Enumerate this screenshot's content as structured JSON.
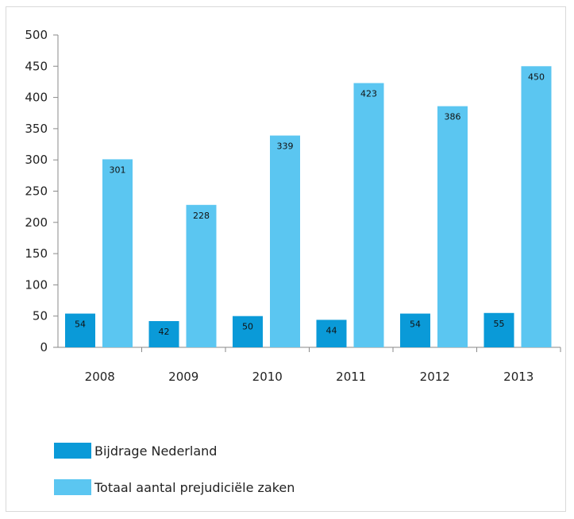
{
  "chart_data": {
    "type": "bar",
    "categories": [
      "2008",
      "2009",
      "2010",
      "2011",
      "2012",
      "2013"
    ],
    "series": [
      {
        "name": "Bijdrage Nederland",
        "values": [
          54,
          42,
          50,
          44,
          54,
          55
        ],
        "color": "#0a9ad8"
      },
      {
        "name": "Totaal aantal prejudiciële zaken",
        "values": [
          301,
          228,
          339,
          423,
          386,
          450
        ],
        "color": "#5bc6f1"
      }
    ],
    "yticks": [
      0,
      50,
      100,
      150,
      200,
      250,
      300,
      350,
      400,
      450,
      500
    ],
    "ylim": [
      0,
      500
    ],
    "grid": false,
    "legend_position": "bottom-left",
    "title": "",
    "xlabel": "",
    "ylabel": ""
  }
}
